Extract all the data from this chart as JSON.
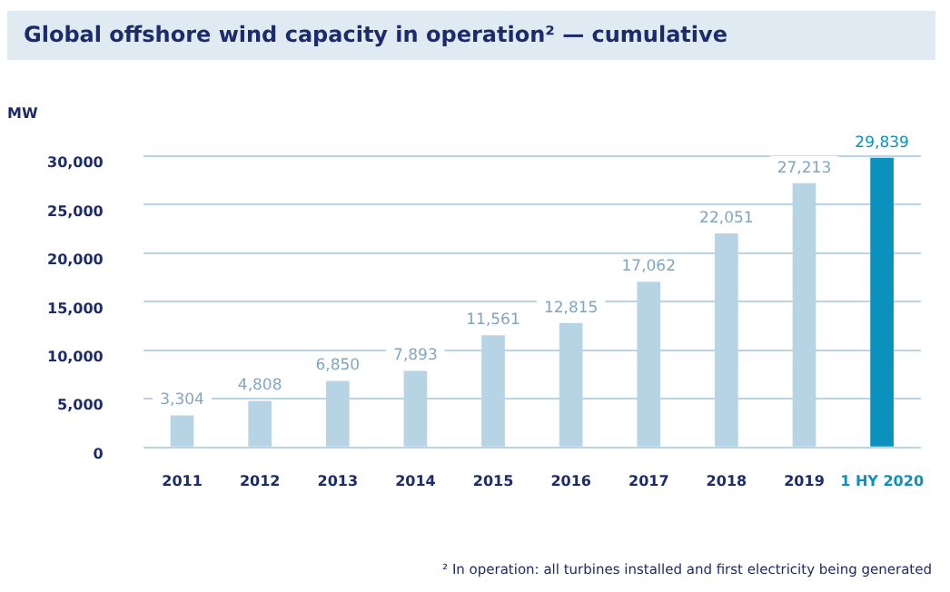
{
  "chart_data": {
    "type": "bar",
    "title": "Global offshore wind capacity in operation² — cumulative",
    "ylabel": "MW",
    "categories": [
      "2011",
      "2012",
      "2013",
      "2014",
      "2015",
      "2016",
      "2017",
      "2018",
      "2019",
      "1 HY 2020"
    ],
    "values": [
      3304,
      4808,
      6850,
      7893,
      11561,
      12815,
      17062,
      22051,
      27213,
      29839
    ],
    "colors": [
      "#b7d4e5",
      "#b7d4e5",
      "#b7d4e5",
      "#b7d4e5",
      "#b7d4e5",
      "#b7d4e5",
      "#b7d4e5",
      "#b7d4e5",
      "#b7d4e5",
      "#0a91bd"
    ],
    "ylim": [
      0,
      30000
    ],
    "yticks": [
      {
        "value": 0,
        "label": "0"
      },
      {
        "value": 5000,
        "label": "5,000"
      },
      {
        "value": 10000,
        "label": "10,000"
      },
      {
        "value": 15000,
        "label": "15,000"
      },
      {
        "value": 20000,
        "label": "20,000"
      },
      {
        "value": 25000,
        "label": "25,000"
      },
      {
        "value": 30000,
        "label": "30,000"
      }
    ],
    "value_labels": [
      "3,304",
      "4,808",
      "6,850",
      "7,893",
      "11,561",
      "12,815",
      "17,062",
      "22,051",
      "27,213",
      "29,839"
    ],
    "grid": "y",
    "legend": false,
    "annotations": [
      "² In operation: all turbines installed and first electricity being generated"
    ]
  }
}
